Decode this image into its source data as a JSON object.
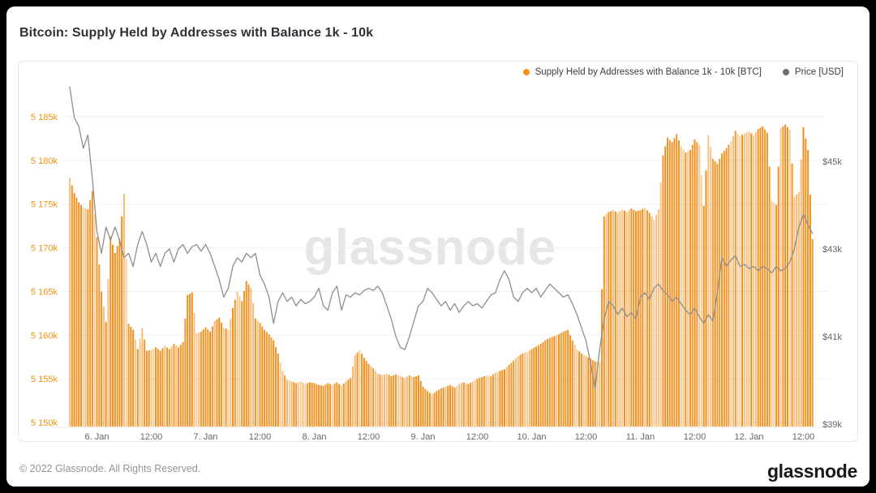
{
  "title": "Bitcoin: Supply Held by Addresses with Balance 1k - 10k",
  "legend": [
    {
      "label": "Supply Held by Addresses with Balance 1k - 10k [BTC]",
      "color": "#f7931a"
    },
    {
      "label": "Price [USD]",
      "color": "#6e6e6e"
    }
  ],
  "watermark": "glassnode",
  "footer": {
    "copyright": "© 2022 Glassnode. All Rights Reserved.",
    "logo": "glassnode"
  },
  "chart_data": {
    "type": "bar",
    "title": "Bitcoin: Supply Held by Addresses with Balance 1k - 10k",
    "legend_position": "top-right",
    "grid": "horizontal-only",
    "x_axis": {
      "start": "2022-01-05 18:00",
      "end": "2022-01-12 14:00",
      "step_hours": 1,
      "tick_labels": [
        "6. Jan",
        "12:00",
        "7. Jan",
        "12:00",
        "8. Jan",
        "12:00",
        "9. Jan",
        "12:00",
        "10. Jan",
        "12:00",
        "11. Jan",
        "12:00",
        "12. Jan",
        "12:00"
      ],
      "tick_hours": [
        6,
        18,
        30,
        42,
        54,
        66,
        78,
        90,
        102,
        114,
        126,
        138,
        150,
        162
      ]
    },
    "y_left": {
      "unit": "BTC, thousands",
      "range": [
        5148,
        5188
      ],
      "ticks": [
        {
          "label": "5 185k",
          "value": 5185
        },
        {
          "label": "5 180k",
          "value": 5180
        },
        {
          "label": "5 175k",
          "value": 5175
        },
        {
          "label": "5 170k",
          "value": 5170
        },
        {
          "label": "5 165k",
          "value": 5165
        },
        {
          "label": "5 160k",
          "value": 5160
        },
        {
          "label": "5 155k",
          "value": 5155
        },
        {
          "label": "5 150k",
          "value": 5150
        }
      ]
    },
    "y_right": {
      "unit": "USD, thousands",
      "range": [
        38.9,
        46.9
      ],
      "ticks": [
        {
          "label": "$45k",
          "value": 45
        },
        {
          "label": "$43k",
          "value": 43
        },
        {
          "label": "$41k",
          "value": 41
        },
        {
          "label": "$39k",
          "value": 39
        }
      ]
    },
    "series": [
      {
        "name": "Supply Held by Addresses with Balance 1k - 10k [BTC]",
        "type": "bar",
        "axis": "left",
        "color": "#ef8e1a",
        "values": [
          5178.0,
          5176.3,
          5175.2,
          5174.6,
          5174.4,
          5176.5,
          5171.2,
          5165.0,
          5161.5,
          5171.3,
          5169.4,
          5171.0,
          5176.2,
          5161.3,
          5160.6,
          5158.4,
          5160.8,
          5158.2,
          5158.3,
          5158.6,
          5158.2,
          5158.8,
          5158.4,
          5159.0,
          5158.6,
          5159.2,
          5164.6,
          5164.9,
          5160.2,
          5160.4,
          5160.9,
          5160.4,
          5161.6,
          5162.0,
          5160.9,
          5160.6,
          5163.1,
          5165.0,
          5163.9,
          5166.2,
          5165.4,
          5161.9,
          5161.4,
          5160.6,
          5160.1,
          5159.4,
          5157.9,
          5155.9,
          5154.9,
          5154.7,
          5154.5,
          5154.7,
          5154.4,
          5154.6,
          5154.5,
          5154.3,
          5154.2,
          5154.5,
          5154.3,
          5154.6,
          5154.2,
          5154.7,
          5155.1,
          5157.7,
          5158.3,
          5157.4,
          5156.7,
          5156.2,
          5155.6,
          5155.4,
          5155.6,
          5155.3,
          5155.5,
          5155.3,
          5155.1,
          5155.4,
          5155.2,
          5155.4,
          5154.1,
          5153.6,
          5153.2,
          5153.6,
          5153.9,
          5154.1,
          5154.3,
          5154.0,
          5154.4,
          5154.6,
          5154.4,
          5154.7,
          5155.0,
          5155.2,
          5155.4,
          5155.3,
          5155.7,
          5155.9,
          5156.1,
          5156.6,
          5157.1,
          5157.6,
          5157.9,
          5158.1,
          5158.4,
          5158.7,
          5159.0,
          5159.4,
          5159.7,
          5159.9,
          5160.1,
          5160.4,
          5160.6,
          5159.4,
          5158.4,
          5157.9,
          5157.6,
          5157.3,
          5157.0,
          5156.9,
          5173.6,
          5174.1,
          5174.3,
          5174.0,
          5174.4,
          5174.1,
          5174.5,
          5174.2,
          5174.3,
          5174.6,
          5174.0,
          5173.2,
          5174.4,
          5180.6,
          5182.6,
          5182.1,
          5183.0,
          5181.6,
          5180.9,
          5181.2,
          5182.4,
          5181.8,
          5174.8,
          5182.9,
          5180.2,
          5179.6,
          5180.8,
          5181.4,
          5182.2,
          5183.4,
          5182.8,
          5183.1,
          5183.3,
          5182.9,
          5183.6,
          5183.9,
          5183.2,
          5175.4,
          5174.9,
          5183.7,
          5184.1,
          5183.5,
          5175.8,
          5176.4,
          5183.8,
          5181.2,
          5171.0
        ]
      },
      {
        "name": "Price [USD]",
        "type": "line",
        "axis": "right",
        "color": "#8e8e8e",
        "values": [
          46.7,
          46.0,
          45.8,
          45.3,
          45.6,
          44.6,
          43.4,
          42.9,
          43.5,
          43.2,
          43.5,
          43.2,
          42.8,
          42.9,
          42.6,
          43.1,
          43.4,
          43.1,
          42.7,
          42.9,
          42.6,
          42.9,
          43.0,
          42.7,
          43.0,
          43.1,
          42.9,
          43.05,
          43.1,
          42.95,
          43.1,
          42.9,
          42.6,
          42.3,
          41.9,
          42.1,
          42.6,
          42.8,
          42.7,
          42.9,
          42.8,
          42.9,
          42.4,
          42.2,
          41.9,
          41.3,
          41.8,
          42.0,
          41.8,
          41.9,
          41.7,
          41.85,
          41.75,
          41.8,
          41.9,
          42.1,
          41.7,
          41.6,
          42.0,
          42.15,
          41.6,
          41.95,
          41.9,
          42.0,
          41.95,
          42.05,
          42.1,
          42.05,
          42.15,
          42.0,
          41.7,
          41.4,
          41.0,
          40.75,
          40.7,
          41.0,
          41.35,
          41.7,
          41.8,
          42.1,
          42.0,
          41.85,
          41.7,
          41.8,
          41.6,
          41.75,
          41.55,
          41.7,
          41.8,
          41.7,
          41.75,
          41.65,
          41.8,
          41.95,
          42.0,
          42.3,
          42.5,
          42.3,
          41.9,
          41.8,
          42.0,
          42.1,
          42.0,
          42.1,
          41.9,
          42.05,
          42.2,
          42.1,
          42.0,
          41.9,
          41.95,
          41.75,
          41.5,
          41.2,
          40.9,
          40.4,
          39.8,
          40.7,
          41.4,
          41.8,
          41.7,
          41.5,
          41.65,
          41.45,
          41.55,
          41.4,
          41.9,
          42.0,
          41.85,
          42.1,
          42.2,
          42.05,
          41.95,
          41.8,
          41.9,
          41.75,
          41.6,
          41.5,
          41.65,
          41.45,
          41.3,
          41.5,
          41.35,
          42.0,
          42.8,
          42.6,
          42.75,
          42.85,
          42.6,
          42.65,
          42.55,
          42.6,
          42.5,
          42.6,
          42.55,
          42.45,
          42.6,
          42.5,
          42.55,
          42.7,
          43.0,
          43.5,
          43.8,
          43.55,
          43.35
        ]
      }
    ]
  }
}
